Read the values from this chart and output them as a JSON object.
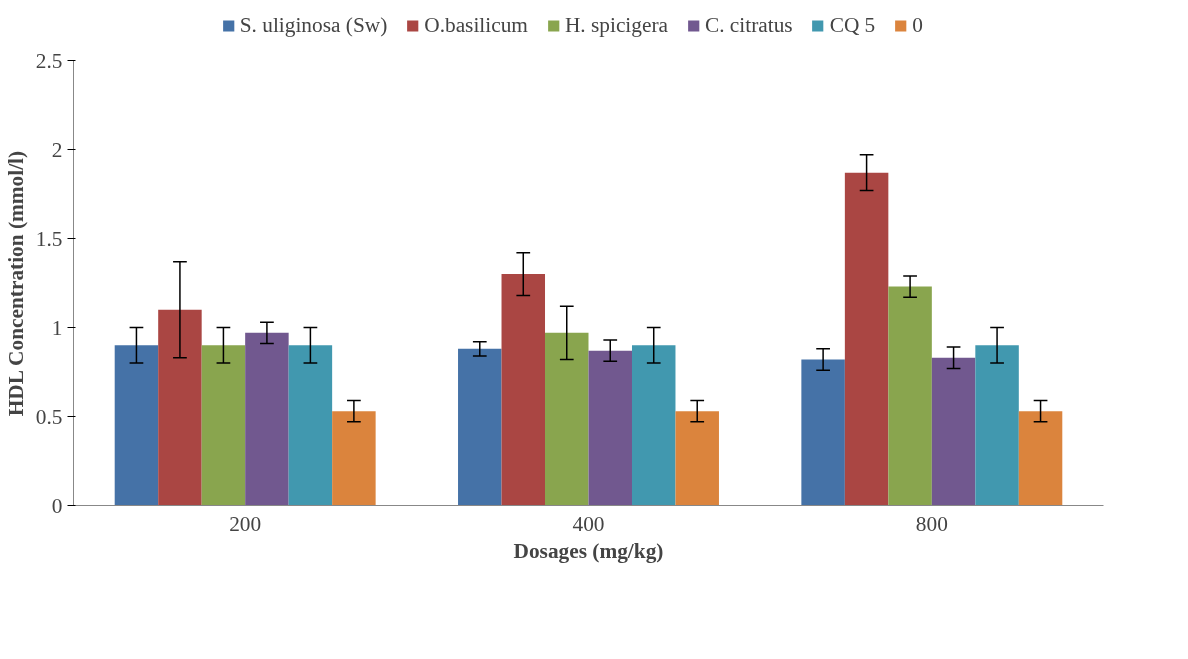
{
  "chart_data": {
    "type": "bar",
    "xlabel": "Dosages (mg/kg)",
    "ylabel": "HDL Concentration (mmol/l)",
    "categories": [
      "200",
      "400",
      "800"
    ],
    "ylim": [
      0,
      2.5
    ],
    "yticks": [
      0,
      0.5,
      1,
      1.5,
      2,
      2.5
    ],
    "grid": false,
    "legend": "top",
    "series": [
      {
        "name": "S. uliginosa (Sw)",
        "color": "#4572a7",
        "values": [
          0.9,
          0.88,
          0.82
        ],
        "errors": [
          0.1,
          0.04,
          0.06
        ]
      },
      {
        "name": "O.basilicum",
        "color": "#aa4643",
        "values": [
          1.1,
          1.3,
          1.87
        ],
        "errors": [
          0.27,
          0.12,
          0.1
        ]
      },
      {
        "name": "H. spicigera",
        "color": "#89a54e",
        "values": [
          0.9,
          0.97,
          1.23
        ],
        "errors": [
          0.1,
          0.15,
          0.06
        ]
      },
      {
        "name": "C. citratus",
        "color": "#71588f",
        "values": [
          0.97,
          0.87,
          0.83
        ],
        "errors": [
          0.06,
          0.06,
          0.06
        ]
      },
      {
        "name": "CQ 5",
        "color": "#4198af",
        "values": [
          0.9,
          0.9,
          0.9
        ],
        "errors": [
          0.1,
          0.1,
          0.1
        ]
      },
      {
        "name": "0",
        "color": "#db843d",
        "values": [
          0.53,
          0.53,
          0.53
        ],
        "errors": [
          0.06,
          0.06,
          0.06
        ]
      }
    ]
  }
}
